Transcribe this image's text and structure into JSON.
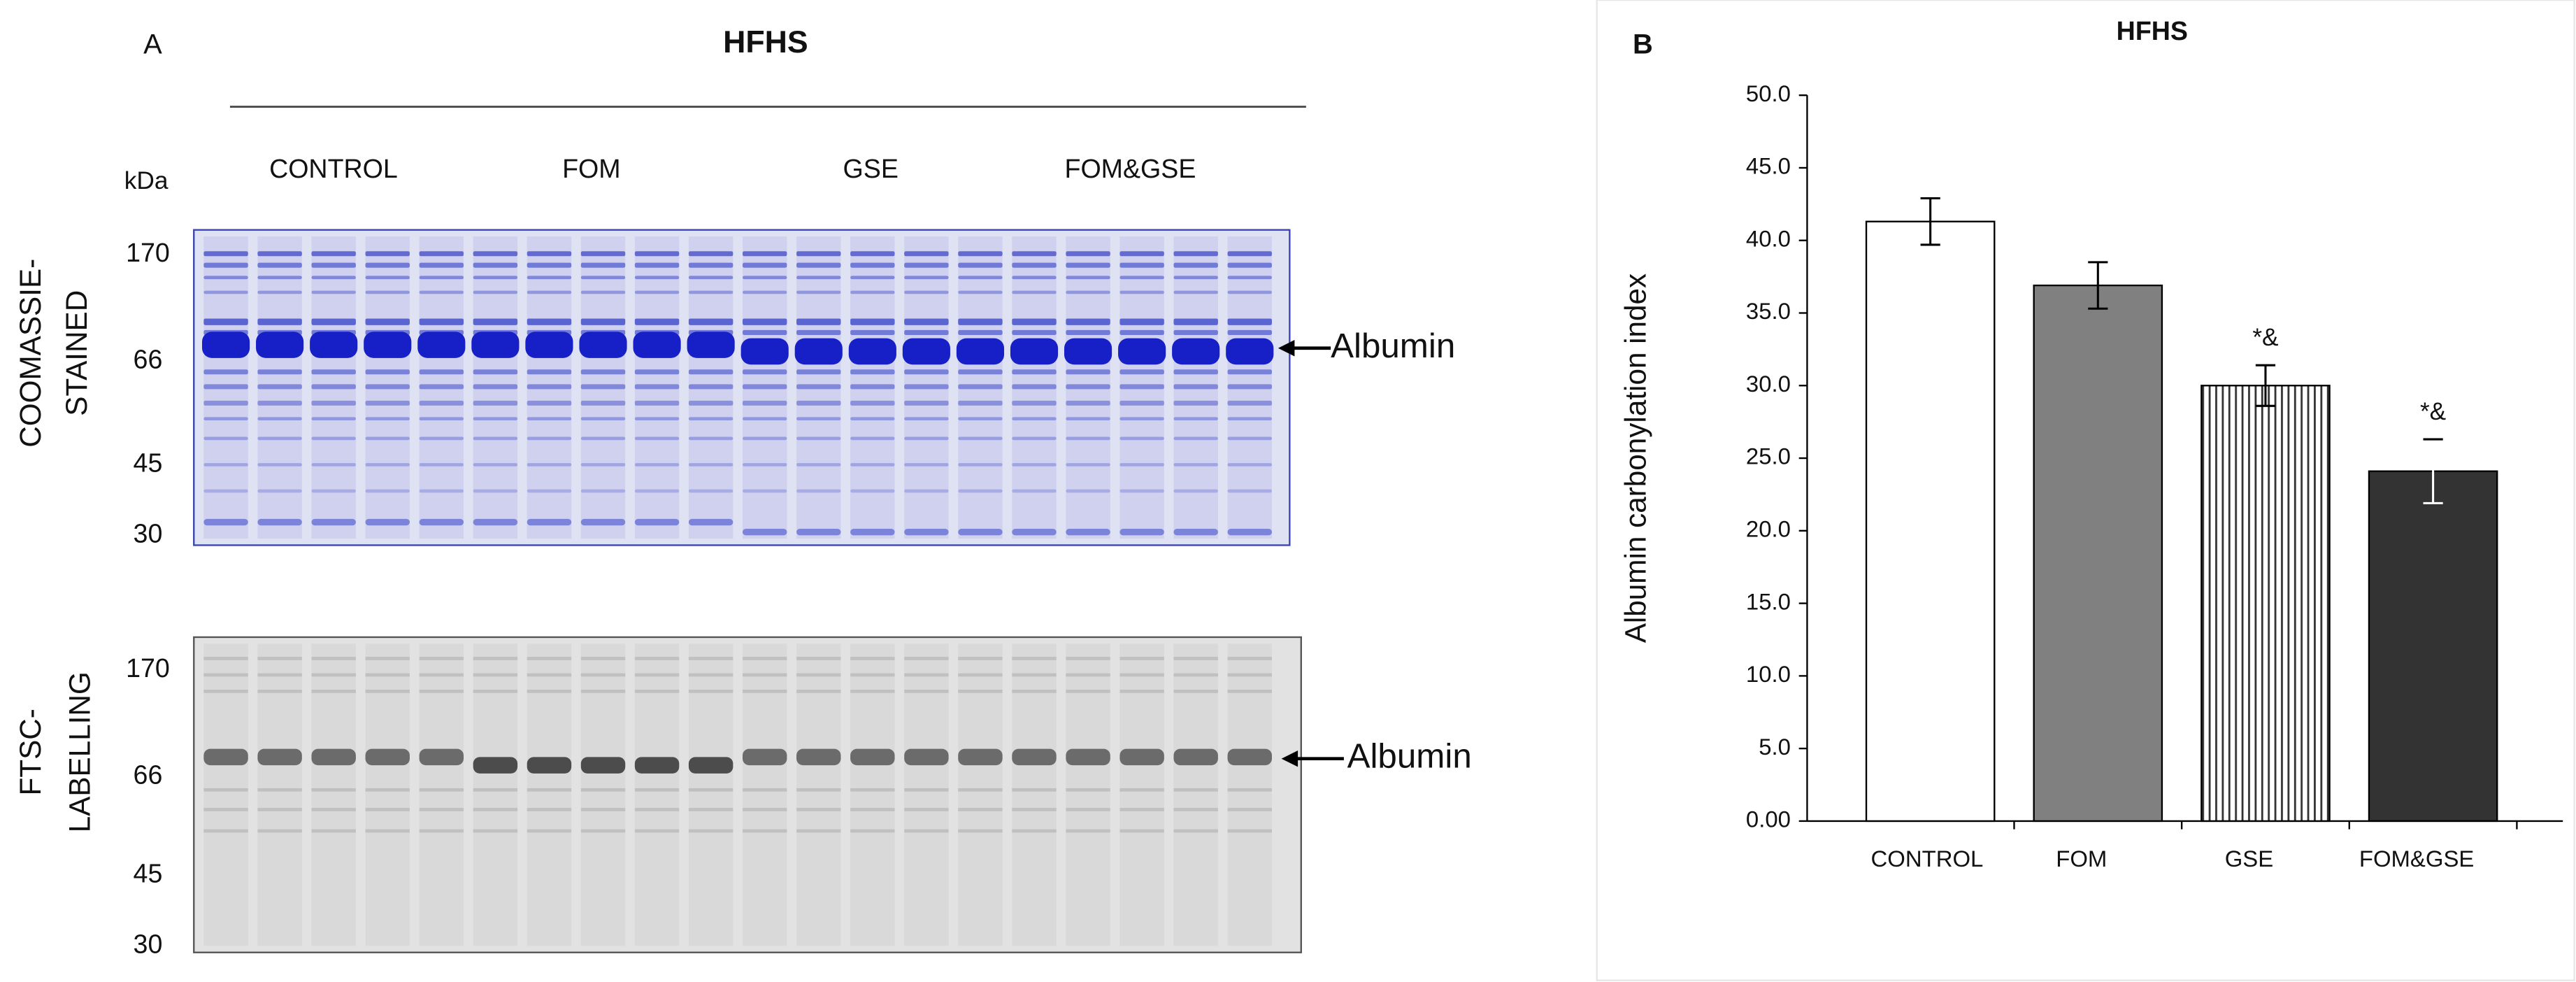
{
  "panel_a": {
    "label": "A",
    "title": "HFHS",
    "groups": [
      "CONTROL",
      "FOM",
      "GSE",
      "FOM&GSE"
    ],
    "unit": "kDa",
    "coomassie_label": [
      "COOMASSIE-",
      "STAINED"
    ],
    "ftsc_label": [
      "FTSC-",
      "LABELLING"
    ],
    "coomassie_markers": [
      170,
      66,
      45,
      30
    ],
    "ftsc_markers": [
      170,
      66,
      45,
      30
    ],
    "arrow_labels": [
      "Albumin",
      "Albumin"
    ]
  },
  "chart_data": {
    "type": "bar",
    "panel_label": "B",
    "title": "HFHS",
    "y_label": "Albumin carbonylation index",
    "categories": [
      "CONTROL",
      "FOM",
      "GSE",
      "FOM&GSE"
    ],
    "values": [
      41.3,
      36.9,
      30.0,
      24.1
    ],
    "errors": [
      1.6,
      1.6,
      1.4,
      2.2
    ],
    "value_annotations": [
      null,
      null,
      "*&",
      "*&"
    ],
    "colors": [
      "#ffffff",
      "#808080",
      "#ffffff",
      "#333333"
    ],
    "patterns": [
      "solid",
      "solid",
      "vertical-lines",
      "solid"
    ],
    "ylim": [
      0,
      50
    ],
    "yticks": [
      {
        "value": 0,
        "label": "0.00"
      },
      {
        "value": 5,
        "label": "5.0"
      },
      {
        "value": 10,
        "label": "10.0"
      },
      {
        "value": 15,
        "label": "15.0"
      },
      {
        "value": 20,
        "label": "20.0"
      },
      {
        "value": 25,
        "label": "25.0"
      },
      {
        "value": 30,
        "label": "30.0"
      },
      {
        "value": 35,
        "label": "35.0"
      },
      {
        "value": 40,
        "label": "40.0"
      },
      {
        "value": 45,
        "label": "45.0"
      },
      {
        "value": 50,
        "label": "50.0"
      }
    ],
    "grid": false
  }
}
